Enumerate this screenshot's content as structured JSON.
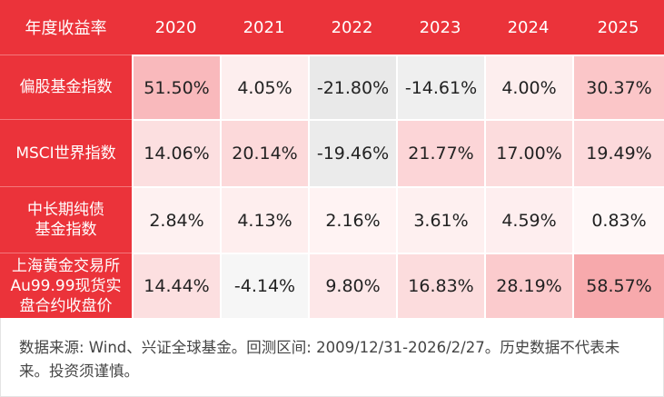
{
  "table": {
    "header": [
      "年度收益率",
      "2020",
      "2021",
      "2022",
      "2023",
      "2024",
      "2025"
    ],
    "rows": [
      {
        "label": [
          "偏股基金指数"
        ],
        "cells": [
          "51.50%",
          "4.05%",
          "-21.80%",
          "-14.61%",
          "4.00%",
          "30.37%"
        ],
        "colors": [
          "#f9b9bc",
          "#fdeeee",
          "#e9e9e9",
          "#efefef",
          "#fdeeee",
          "#fbc6c8"
        ]
      },
      {
        "label": [
          "MSCI世界指数"
        ],
        "cells": [
          "14.06%",
          "20.14%",
          "-19.46%",
          "21.77%",
          "17.00%",
          "19.49%"
        ],
        "colors": [
          "#fcdfe0",
          "#fcd9da",
          "#ebebeb",
          "#fcd5d7",
          "#fcdcdd",
          "#fcd9db"
        ]
      },
      {
        "label": [
          "中长期纯债",
          "基金指数"
        ],
        "cells": [
          "2.84%",
          "4.13%",
          "2.16%",
          "3.61%",
          "4.59%",
          "0.83%"
        ],
        "colors": [
          "#fef1f1",
          "#feeeee",
          "#fff3f3",
          "#fef0f0",
          "#feeeef",
          "#fff7f7"
        ]
      },
      {
        "label": [
          "上海黄金交易所",
          "Au99.99现货实",
          "盘合约收盘价"
        ],
        "cells": [
          "14.44%",
          "-4.14%",
          "9.80%",
          "16.83%",
          "28.19%",
          "58.57%"
        ],
        "colors": [
          "#fcdfe0",
          "#f6f6f6",
          "#fde7e8",
          "#fcdcdd",
          "#fbcbcd",
          "#f7a9ac"
        ]
      }
    ]
  },
  "footer": "数据来源: Wind、兴证全球基金。回测区间: 2009/12/31-2026/2/27。历史数据不代表未来。投资须谨慎。"
}
